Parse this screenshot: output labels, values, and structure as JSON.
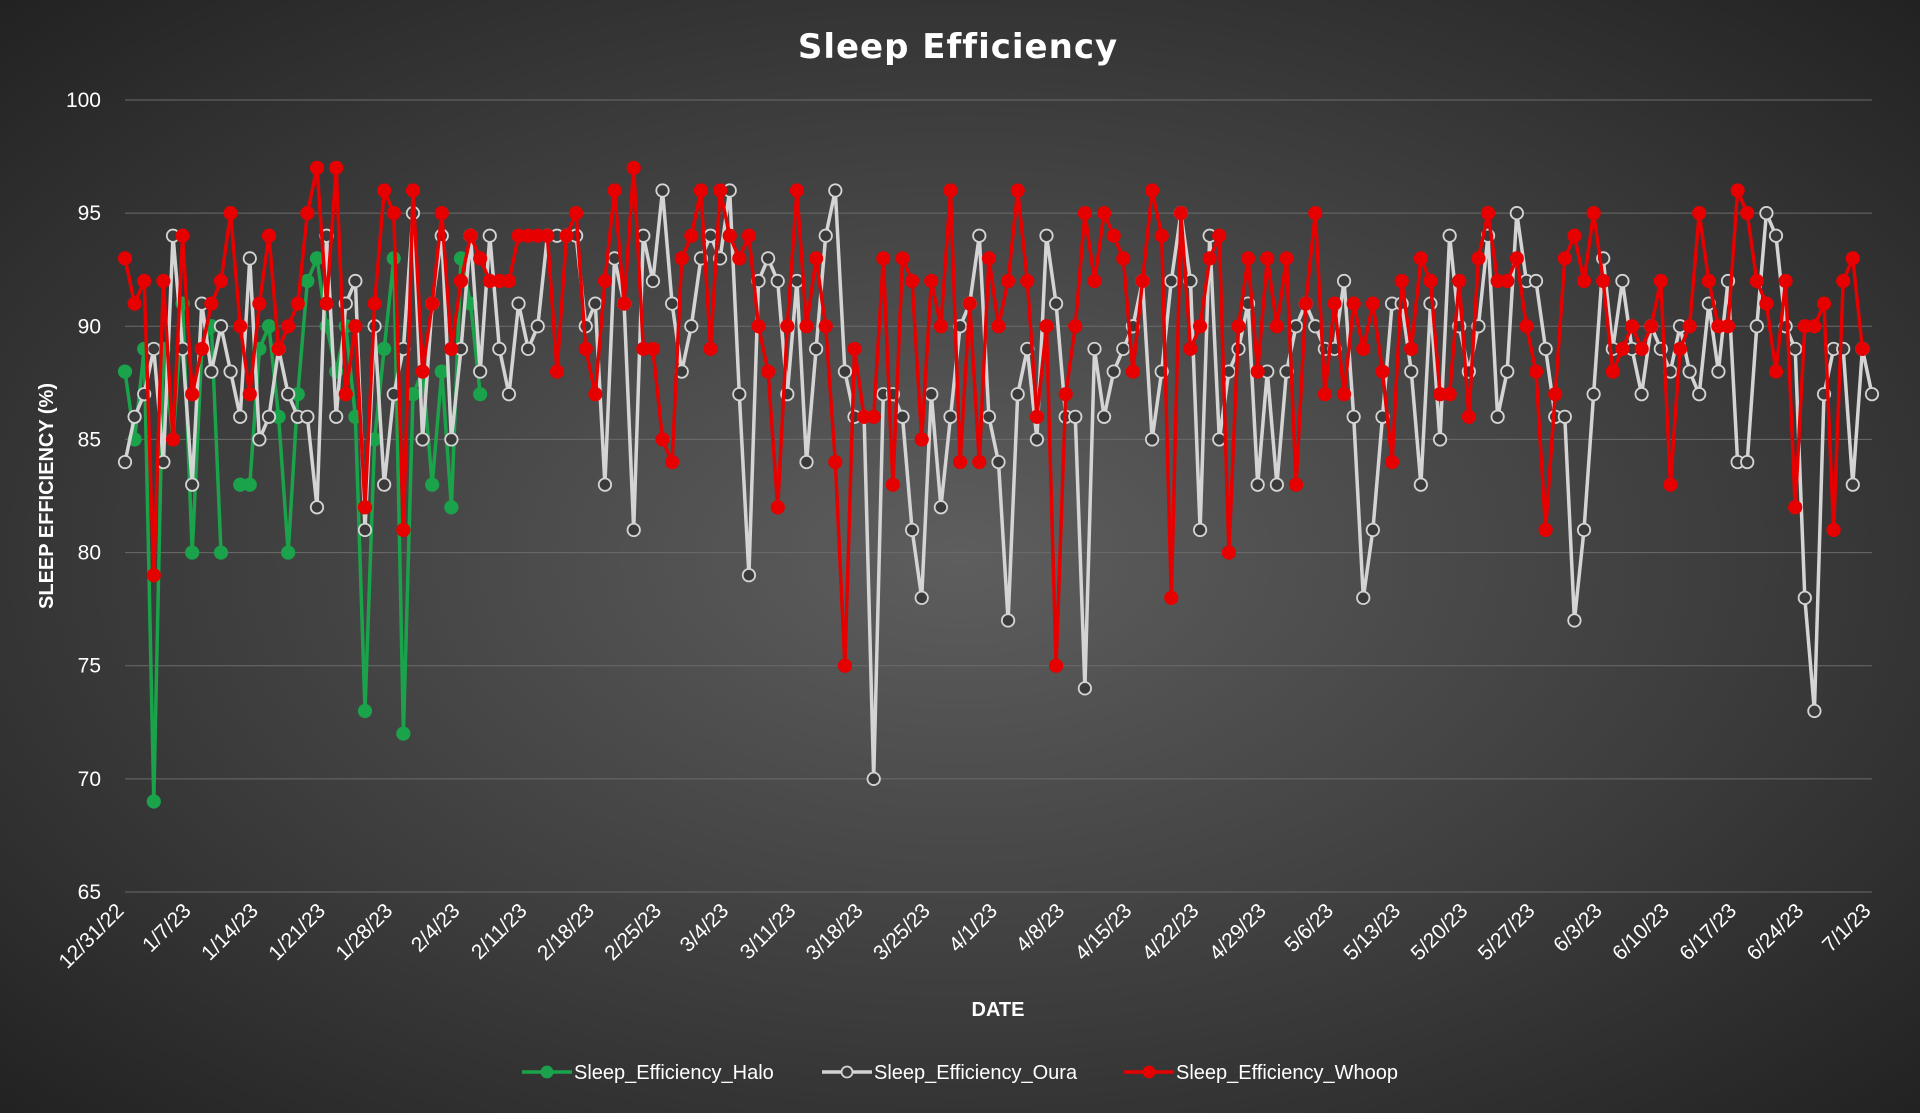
{
  "chart_data": {
    "type": "line",
    "title": "Sleep Efficiency",
    "xlabel": "DATE",
    "ylabel": "SLEEP EFFICIENCY (%)",
    "ylim": [
      65,
      100
    ],
    "yticks": [
      65,
      70,
      75,
      80,
      85,
      90,
      95,
      100
    ],
    "xlim": [
      "2022-12-31",
      "2023-07-01"
    ],
    "xtick_labels": [
      "12/31/22",
      "1/7/23",
      "1/14/23",
      "1/21/23",
      "1/28/23",
      "2/4/23",
      "2/11/23",
      "2/18/23",
      "2/25/23",
      "3/4/23",
      "3/11/23",
      "3/18/23",
      "3/25/23",
      "4/1/23",
      "4/8/23",
      "4/15/23",
      "4/22/23",
      "4/29/23",
      "5/6/23",
      "5/13/23",
      "5/20/23",
      "5/27/23",
      "6/3/23",
      "6/10/23",
      "6/17/23",
      "6/24/23",
      "7/1/23"
    ],
    "xtick_dates": [
      "2022-12-31",
      "2023-01-07",
      "2023-01-14",
      "2023-01-21",
      "2023-01-28",
      "2023-02-04",
      "2023-02-11",
      "2023-02-18",
      "2023-02-25",
      "2023-03-04",
      "2023-03-11",
      "2023-03-18",
      "2023-03-25",
      "2023-04-01",
      "2023-04-08",
      "2023-04-15",
      "2023-04-22",
      "2023-04-29",
      "2023-05-06",
      "2023-05-13",
      "2023-05-20",
      "2023-05-27",
      "2023-06-03",
      "2023-06-10",
      "2023-06-17",
      "2023-06-24",
      "2023-07-01"
    ],
    "grid": true,
    "legend_position": "bottom",
    "series": [
      {
        "name": "Sleep_Efficiency_Halo",
        "color": "#1aa34a",
        "marker_fill": "#1aa34a",
        "start_date": "2022-12-31",
        "values": [
          88,
          85,
          89,
          69,
          89,
          85,
          91,
          80,
          89,
          90,
          80,
          null,
          83,
          83,
          89,
          90,
          86,
          80,
          87,
          92,
          93,
          90,
          88,
          90,
          86,
          73,
          85,
          89,
          93,
          72,
          87,
          88,
          83,
          88,
          82,
          93,
          91,
          87
        ]
      },
      {
        "name": "Sleep_Efficiency_Oura",
        "color": "#d4d4d4",
        "marker_fill": "#3a3a3a",
        "start_date": "2022-12-31",
        "values": [
          84,
          86,
          87,
          89,
          84,
          94,
          89,
          83,
          91,
          88,
          90,
          88,
          86,
          93,
          85,
          86,
          89,
          87,
          86,
          86,
          82,
          94,
          86,
          91,
          92,
          81,
          90,
          83,
          87,
          89,
          95,
          85,
          91,
          94,
          85,
          89,
          94,
          88,
          94,
          89,
          87,
          91,
          89,
          90,
          94,
          94,
          94,
          94,
          90,
          91,
          83,
          93,
          91,
          81,
          94,
          92,
          96,
          91,
          88,
          90,
          93,
          94,
          93,
          96,
          87,
          79,
          92,
          93,
          92,
          87,
          92,
          84,
          89,
          94,
          96,
          88,
          86,
          86,
          70,
          87,
          87,
          86,
          81,
          78,
          87,
          82,
          86,
          90,
          91,
          94,
          86,
          84,
          77,
          87,
          89,
          85,
          94,
          91,
          86,
          86,
          74,
          89,
          86,
          88,
          89,
          90,
          92,
          85,
          88,
          92,
          95,
          92,
          81,
          94,
          85,
          88,
          89,
          91,
          83,
          88,
          83,
          88,
          90,
          91,
          90,
          89,
          89,
          92,
          86,
          78,
          81,
          86,
          91,
          91,
          88,
          83,
          91,
          85,
          94,
          90,
          88,
          90,
          94,
          86,
          88,
          95,
          92,
          92,
          89,
          86,
          86,
          77,
          81,
          87,
          93,
          89,
          92,
          89,
          87,
          90,
          89,
          88,
          90,
          88,
          87,
          91,
          88,
          92,
          84,
          84,
          90,
          95,
          94,
          90,
          89,
          78,
          73,
          87,
          89,
          89,
          83,
          89,
          87
        ],
        "values_end_date": "2023-07-01"
      },
      {
        "name": "Sleep_Efficiency_Whoop",
        "color": "#e60000",
        "marker_fill": "#e60000",
        "start_date": "2022-12-31",
        "values": [
          93,
          91,
          92,
          79,
          92,
          85,
          94,
          87,
          89,
          91,
          92,
          95,
          90,
          87,
          91,
          94,
          89,
          90,
          91,
          95,
          97,
          91,
          97,
          87,
          90,
          82,
          91,
          96,
          95,
          81,
          96,
          88,
          91,
          95,
          89,
          92,
          94,
          93,
          92,
          92,
          92,
          94,
          94,
          94,
          94,
          88,
          94,
          95,
          89,
          87,
          92,
          96,
          91,
          97,
          89,
          89,
          85,
          84,
          93,
          94,
          96,
          89,
          96,
          94,
          93,
          94,
          90,
          88,
          82,
          90,
          96,
          90,
          93,
          90,
          84,
          75,
          89,
          86,
          86,
          93,
          83,
          93,
          92,
          85,
          92,
          90,
          96,
          84,
          91,
          84,
          93,
          90,
          92,
          96,
          92,
          86,
          90,
          75,
          87,
          90,
          95,
          92,
          95,
          94,
          93,
          88,
          92,
          96,
          94,
          78,
          95,
          89,
          90,
          93,
          94,
          80,
          90,
          93,
          88,
          93,
          90,
          93,
          83,
          91,
          95,
          87,
          91,
          87,
          91,
          89,
          91,
          88,
          84,
          92,
          89,
          93,
          92,
          87,
          87,
          92,
          86,
          93,
          95,
          92,
          92,
          93,
          90,
          88,
          81,
          87,
          93,
          94,
          92,
          95,
          92,
          88,
          89,
          90,
          89,
          90,
          92,
          83,
          89,
          90,
          95,
          92,
          90,
          90,
          96,
          95,
          92,
          91,
          88,
          92,
          82,
          90,
          90,
          91,
          81,
          92,
          93,
          89
        ]
      }
    ]
  }
}
